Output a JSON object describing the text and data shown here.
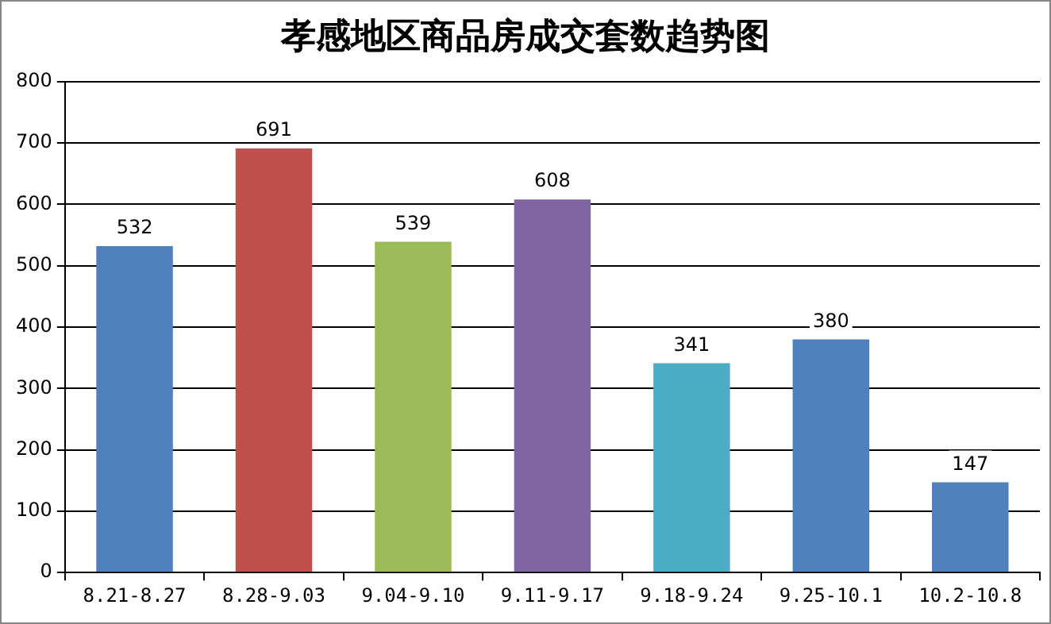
{
  "chart_data": {
    "type": "bar",
    "title": "孝感地区商品房成交套数趋势图",
    "categories": [
      "8.21-8.27",
      "8.28-9.03",
      "9.04-9.10",
      "9.11-9.17",
      "9.18-9.24",
      "9.25-10.1",
      "10.2-10.8"
    ],
    "values": [
      532,
      691,
      539,
      608,
      341,
      380,
      147
    ],
    "colors": [
      "#4f81bd",
      "#c0504d",
      "#9bbb59",
      "#8064a2",
      "#4bacc6",
      "#4f81bd",
      "#4f81bd"
    ],
    "ylim": [
      0,
      800
    ],
    "yticks": [
      0,
      100,
      200,
      300,
      400,
      500,
      600,
      700,
      800
    ],
    "grid": "y",
    "data_labels": true,
    "legend": false
  }
}
